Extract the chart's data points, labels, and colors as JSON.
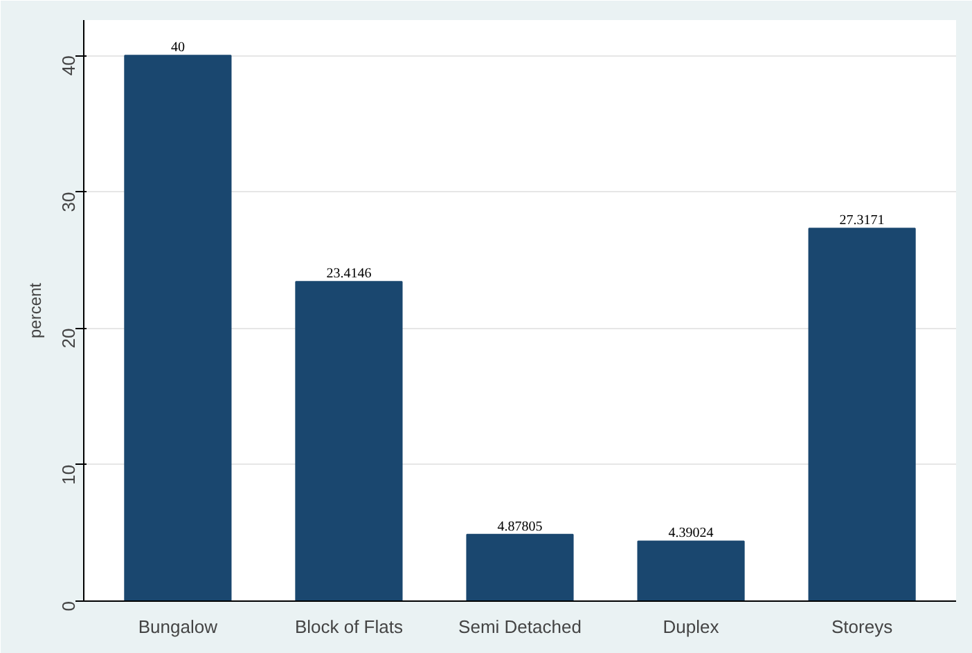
{
  "chart_data": {
    "type": "bar",
    "ylabel": "percent",
    "categories": [
      "Bungalow",
      "Block of Flats",
      "Semi Detached",
      "Duplex",
      "Storeys"
    ],
    "values": [
      40,
      23.4146,
      4.87805,
      4.39024,
      27.3171
    ],
    "color": "#1a476f",
    "ylim": [
      0,
      42.6
    ],
    "yticks": [
      0,
      10,
      20,
      30,
      40
    ],
    "grid": "y",
    "data_labels": true
  }
}
